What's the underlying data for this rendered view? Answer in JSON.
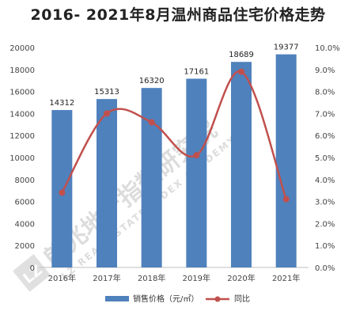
{
  "title": "2016- 2021年8月温州商品住宅价格走势",
  "watermark": {
    "cn": "朗兆地产指数研究院",
    "en": "LZ REAL ESTATE INDEX ACADEMY",
    "logo": "LZ"
  },
  "chart_data": {
    "type": "bar",
    "categories": [
      "2016年",
      "2017年",
      "2018年",
      "2019年",
      "2020年",
      "2021年"
    ],
    "series": [
      {
        "name": "销售价格（元/㎡）",
        "type": "bar",
        "axis": "left",
        "values": [
          14312,
          15313,
          16320,
          17161,
          18689,
          19377
        ],
        "color": "#4f81bd"
      },
      {
        "name": "同比",
        "type": "line",
        "axis": "right",
        "smooth": true,
        "values": [
          3.4,
          7.0,
          6.6,
          5.1,
          8.9,
          3.1
        ],
        "color": "#c0504d"
      }
    ],
    "y_left": {
      "min": 0,
      "max": 20000,
      "step": 2000,
      "ticks": [
        "0",
        "2000",
        "4000",
        "6000",
        "8000",
        "10000",
        "12000",
        "14000",
        "16000",
        "18000",
        "20000"
      ]
    },
    "y_right": {
      "min": 0,
      "max": 10,
      "step": 1,
      "ticks": [
        "0.0%",
        "1.0%",
        "2.0%",
        "3.0%",
        "4.0%",
        "5.0%",
        "6.0%",
        "7.0%",
        "8.0%",
        "9.0%",
        "10.0%"
      ]
    },
    "data_labels": [
      "14312",
      "15313",
      "16320",
      "17161",
      "18689",
      "19377"
    ],
    "grid": false,
    "legend": "bottom"
  }
}
